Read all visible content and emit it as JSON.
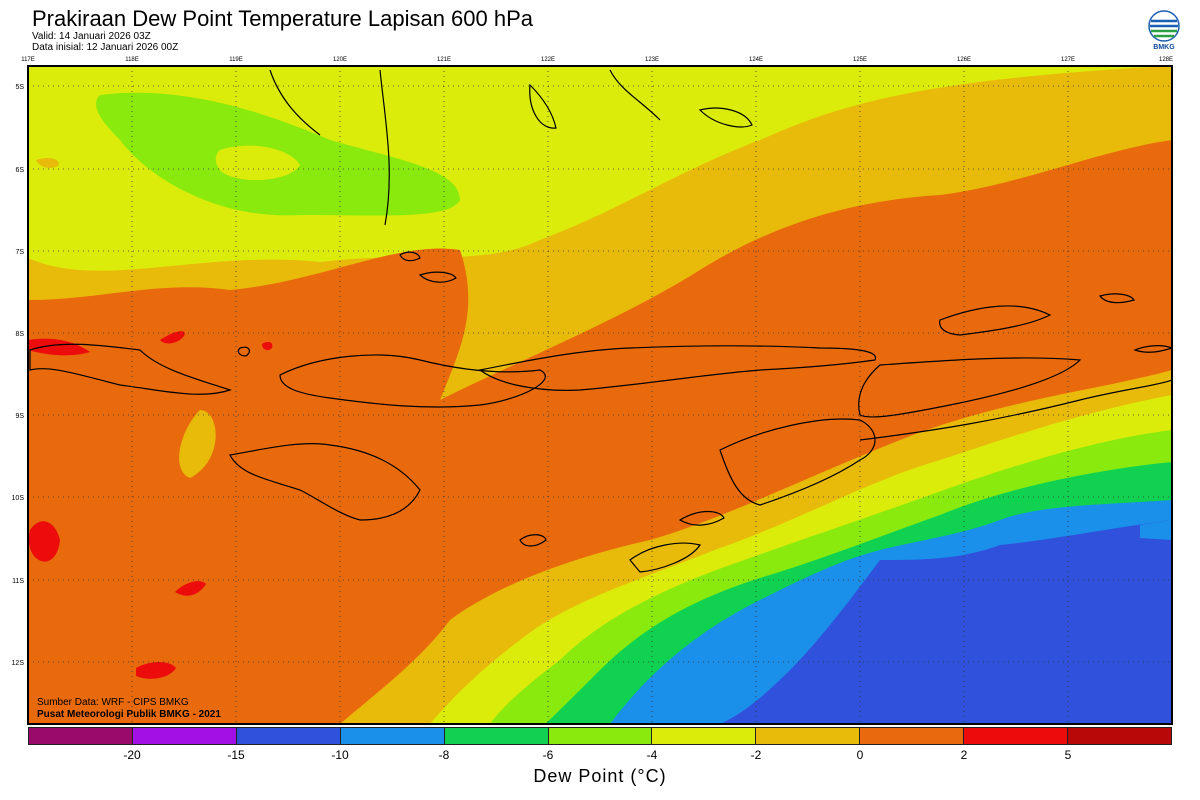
{
  "header": {
    "title": "Prakiraan Dew Point Temperature Lapisan 600 hPa",
    "valid": "Valid: 14 Januari 2026 03Z",
    "initial": "Data inisial: 12 Januari 2026 00Z"
  },
  "logo": {
    "text": "BMKG",
    "icon": "bmkg-logo-icon"
  },
  "map": {
    "lon_labels": [
      "117E",
      "118E",
      "119E",
      "120E",
      "121E",
      "122E",
      "123E",
      "124E",
      "125E",
      "126E",
      "127E",
      "128E"
    ],
    "lat_labels": [
      "5S",
      "6S",
      "7S",
      "8S",
      "9S",
      "10S",
      "11S",
      "12S"
    ],
    "source_line1": "Sumber Data: WRF - CIPS BMKG",
    "source_line2": "Pusat Meteorologi Publik BMKG - 2021",
    "grid": true
  },
  "colorbar": {
    "colors": [
      "#9a0a6a",
      "#a310e6",
      "#2f51dc",
      "#1a90ea",
      "#10d250",
      "#8aea0e",
      "#dcec0a",
      "#e8ba0a",
      "#e86a0c",
      "#ec0c0c",
      "#b80808"
    ],
    "ticks": [
      "-20",
      "-15",
      "-10",
      "-8",
      "-6",
      "-4",
      "-2",
      "0",
      "2",
      "5"
    ],
    "title": "Dew Point (°C)"
  }
}
